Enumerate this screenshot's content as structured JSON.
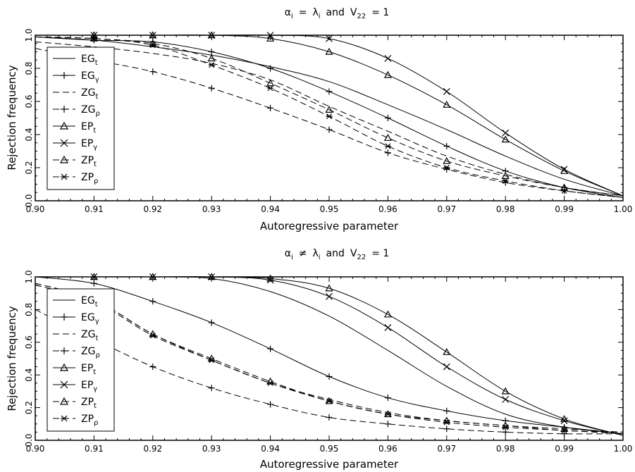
{
  "chart_data": [
    {
      "type": "line",
      "title": "α_i = λ_i and V_22 = 1",
      "title_parts": {
        "alpha": "α",
        "alpha_sub": "i",
        "rel": "=",
        "lambda": "λ",
        "lambda_sub": "i",
        "mid": "and",
        "v": "V",
        "v_sub": "22",
        "end": "= 1"
      },
      "xlabel": "Autoregressive parameter",
      "ylabel": "Rejection frequency",
      "xlim": [
        0.9,
        1.0
      ],
      "ylim": [
        0.0,
        1.0
      ],
      "x_ticks": [
        "0.90",
        "0.91",
        "0.92",
        "0.93",
        "0.94",
        "0.95",
        "0.96",
        "0.97",
        "0.98",
        "0.99",
        "1.00"
      ],
      "y_ticks": [
        "0.0",
        "0.2",
        "0.4",
        "0.6",
        "0.8",
        "1.0"
      ],
      "legend_position": "left",
      "x": [
        0.9,
        0.91,
        0.92,
        0.93,
        0.94,
        0.95,
        0.96,
        0.97,
        0.98,
        0.99,
        1.0
      ],
      "series": [
        {
          "name": "EG",
          "sub": "t",
          "line": "solid",
          "marker": "none",
          "values": [
            0.99,
            0.97,
            0.93,
            0.88,
            0.81,
            0.72,
            0.58,
            0.43,
            0.27,
            0.13,
            0.03
          ]
        },
        {
          "name": "EG",
          "sub": "γ",
          "line": "solid",
          "marker": "plus",
          "values": [
            0.99,
            0.97,
            0.96,
            0.9,
            0.8,
            0.66,
            0.5,
            0.33,
            0.18,
            0.08,
            0.02
          ]
        },
        {
          "name": "ZG",
          "sub": "t",
          "line": "dashed",
          "marker": "none",
          "values": [
            0.96,
            0.93,
            0.89,
            0.83,
            0.73,
            0.57,
            0.42,
            0.27,
            0.16,
            0.08,
            0.03
          ]
        },
        {
          "name": "ZG",
          "sub": "ρ",
          "line": "dashed",
          "marker": "plus",
          "values": [
            0.92,
            0.85,
            0.78,
            0.68,
            0.56,
            0.43,
            0.29,
            0.19,
            0.11,
            0.06,
            0.02
          ]
        },
        {
          "name": "EP",
          "sub": "t",
          "line": "solid",
          "marker": "triangle",
          "values": [
            1.0,
            1.0,
            1.0,
            1.0,
            0.98,
            0.9,
            0.76,
            0.58,
            0.37,
            0.18,
            0.03
          ]
        },
        {
          "name": "EP",
          "sub": "γ",
          "line": "solid",
          "marker": "x",
          "values": [
            1.0,
            1.0,
            1.0,
            1.0,
            1.0,
            0.98,
            0.86,
            0.66,
            0.41,
            0.19,
            0.03
          ]
        },
        {
          "name": "ZP",
          "sub": "t",
          "line": "dashed",
          "marker": "triangle",
          "values": [
            0.99,
            0.98,
            0.95,
            0.86,
            0.71,
            0.55,
            0.38,
            0.24,
            0.15,
            0.08,
            0.03
          ]
        },
        {
          "name": "ZP",
          "sub": "ρ",
          "line": "dashed",
          "marker": "asterisk",
          "values": [
            0.99,
            0.98,
            0.94,
            0.82,
            0.68,
            0.51,
            0.33,
            0.2,
            0.12,
            0.06,
            0.02
          ]
        }
      ]
    },
    {
      "type": "line",
      "title": "α_i ≠ λ_i and V_22 = 1",
      "title_parts": {
        "alpha": "α",
        "alpha_sub": "i",
        "rel": "≠",
        "lambda": "λ",
        "lambda_sub": "i",
        "mid": "and",
        "v": "V",
        "v_sub": "22",
        "end": "= 1"
      },
      "xlabel": "Autoregressive parameter",
      "ylabel": "Rejection frequency",
      "xlim": [
        0.9,
        1.0
      ],
      "ylim": [
        0.0,
        1.0
      ],
      "x_ticks": [
        "0.90",
        "0.91",
        "0.92",
        "0.93",
        "0.94",
        "0.95",
        "0.96",
        "0.97",
        "0.98",
        "0.99",
        "1.00"
      ],
      "y_ticks": [
        "0.0",
        "0.2",
        "0.4",
        "0.6",
        "0.8",
        "1.0"
      ],
      "legend_position": "left",
      "x": [
        0.9,
        0.91,
        0.92,
        0.93,
        0.94,
        0.95,
        0.96,
        0.97,
        0.98,
        0.99,
        1.0
      ],
      "series": [
        {
          "name": "EG",
          "sub": "t",
          "line": "solid",
          "marker": "none",
          "values": [
            1.0,
            1.0,
            1.0,
            0.99,
            0.91,
            0.76,
            0.55,
            0.33,
            0.16,
            0.08,
            0.04
          ]
        },
        {
          "name": "EG",
          "sub": "γ",
          "line": "solid",
          "marker": "plus",
          "values": [
            1.0,
            0.96,
            0.85,
            0.72,
            0.56,
            0.39,
            0.26,
            0.18,
            0.12,
            0.08,
            0.04
          ]
        },
        {
          "name": "ZG",
          "sub": "t",
          "line": "dashed",
          "marker": "none",
          "values": [
            0.96,
            0.86,
            0.65,
            0.49,
            0.35,
            0.25,
            0.17,
            0.12,
            0.09,
            0.06,
            0.05
          ]
        },
        {
          "name": "ZG",
          "sub": "ρ",
          "line": "dashed",
          "marker": "plus",
          "values": [
            0.8,
            0.62,
            0.45,
            0.32,
            0.22,
            0.14,
            0.1,
            0.07,
            0.05,
            0.04,
            0.04
          ]
        },
        {
          "name": "EP",
          "sub": "t",
          "line": "solid",
          "marker": "triangle",
          "values": [
            1.0,
            1.0,
            1.0,
            1.0,
            0.99,
            0.93,
            0.77,
            0.54,
            0.3,
            0.13,
            0.03
          ]
        },
        {
          "name": "EP",
          "sub": "γ",
          "line": "solid",
          "marker": "x",
          "values": [
            1.0,
            1.0,
            1.0,
            1.0,
            0.98,
            0.88,
            0.69,
            0.45,
            0.25,
            0.12,
            0.03
          ]
        },
        {
          "name": "ZP",
          "sub": "t",
          "line": "dashed",
          "marker": "triangle",
          "values": [
            0.96,
            0.86,
            0.65,
            0.5,
            0.36,
            0.24,
            0.16,
            0.12,
            0.09,
            0.07,
            0.05
          ]
        },
        {
          "name": "ZP",
          "sub": "ρ",
          "line": "dashed",
          "marker": "asterisk",
          "values": [
            0.95,
            0.85,
            0.64,
            0.49,
            0.35,
            0.24,
            0.16,
            0.11,
            0.08,
            0.06,
            0.04
          ]
        }
      ]
    }
  ]
}
